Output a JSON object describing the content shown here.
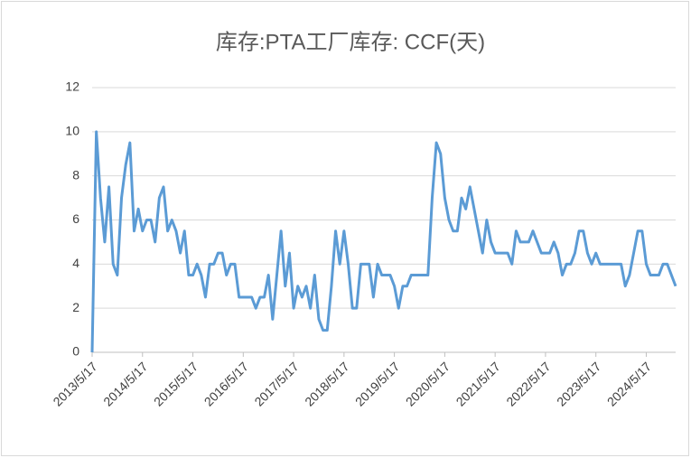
{
  "chart_data": {
    "type": "line",
    "title": "库存:PTA工厂库存: CCF(天)",
    "categories": [
      "2013/5/17",
      null,
      null,
      null,
      null,
      null,
      null,
      null,
      null,
      null,
      null,
      null,
      "2014/5/17",
      null,
      null,
      null,
      null,
      null,
      null,
      null,
      null,
      null,
      null,
      null,
      "2015/5/17",
      null,
      null,
      null,
      null,
      null,
      null,
      null,
      null,
      null,
      null,
      null,
      "2016/5/17",
      null,
      null,
      null,
      null,
      null,
      null,
      null,
      null,
      null,
      null,
      null,
      "2017/5/17",
      null,
      null,
      null,
      null,
      null,
      null,
      null,
      null,
      null,
      null,
      null,
      "2018/5/17",
      null,
      null,
      null,
      null,
      null,
      null,
      null,
      null,
      null,
      null,
      null,
      "2019/5/17",
      null,
      null,
      null,
      null,
      null,
      null,
      null,
      null,
      null,
      null,
      null,
      "2020/5/17",
      null,
      null,
      null,
      null,
      null,
      null,
      null,
      null,
      null,
      null,
      null,
      "2021/5/17",
      null,
      null,
      null,
      null,
      null,
      null,
      null,
      null,
      null,
      null,
      null,
      "2022/5/17",
      null,
      null,
      null,
      null,
      null,
      null,
      null,
      null,
      null,
      null,
      null,
      "2023/5/17",
      null,
      null,
      null,
      null,
      null,
      null,
      null,
      null,
      null,
      null,
      null,
      "2024/5/17",
      null,
      null,
      null,
      null,
      null,
      null,
      null
    ],
    "series": [
      {
        "color": "#5b9bd5",
        "values": [
          0,
          10,
          7,
          5,
          7.5,
          4,
          3.5,
          7,
          8.5,
          9.5,
          5.5,
          6.5,
          5.5,
          6,
          6,
          5,
          7,
          7.5,
          5.5,
          6,
          5.5,
          4.5,
          5.5,
          3.5,
          3.5,
          4,
          3.5,
          2.5,
          4,
          4,
          4.5,
          4.5,
          3.5,
          4,
          4,
          2.5,
          2.5,
          2.5,
          2.5,
          2,
          2.5,
          2.5,
          3.5,
          1.5,
          3.5,
          5.5,
          3,
          4.5,
          2,
          3,
          2.5,
          3,
          2,
          3.5,
          1.5,
          1,
          1,
          3,
          5.5,
          4,
          5.5,
          4,
          2,
          2,
          4,
          4,
          4,
          2.5,
          4,
          3.5,
          3.5,
          3.5,
          3,
          2,
          3,
          3,
          3.5,
          3.5,
          3.5,
          3.5,
          3.5,
          7,
          9.5,
          9,
          7,
          6,
          5.5,
          5.5,
          7,
          6.5,
          7.5,
          6.5,
          5.5,
          4.5,
          6,
          5,
          4.5,
          4.5,
          4.5,
          4.5,
          4,
          5.5,
          5,
          5,
          5,
          5.5,
          5,
          4.5,
          4.5,
          4.5,
          5,
          4.5,
          3.5,
          4,
          4,
          4.5,
          5.5,
          5.5,
          4.5,
          4,
          4.5,
          4,
          4,
          4,
          4,
          4,
          4,
          3,
          3.5,
          4.5,
          5.5,
          5.5,
          4,
          3.5,
          3.5,
          3.5,
          4,
          4,
          3.5,
          3
        ]
      }
    ],
    "ylim": [
      0,
      12
    ],
    "yticks": [
      0,
      2,
      4,
      6,
      8,
      10,
      12
    ],
    "grid": true
  }
}
